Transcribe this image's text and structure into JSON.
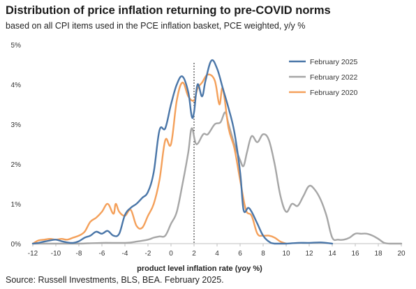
{
  "header": {
    "title": "Distribution of price inflation returning to pre-COVID norms",
    "subtitle": "based on all CPI items used in the PCE inflation basket, PCE weighted, y/y %"
  },
  "footer": {
    "source": "Source: Russell Investments, BLS, BEA. February 2025."
  },
  "chart_data": {
    "type": "line",
    "title": "Distribution of price inflation returning to pre-COVID norms",
    "subtitle": "based on all CPI items used in the PCE inflation basket, PCE weighted, y/y %",
    "xlabel": "product level inflation rate (yoy %)",
    "ylabel": "",
    "xlim": [
      -12,
      20
    ],
    "ylim": [
      0,
      5
    ],
    "x_ticks": [
      "-12",
      "-10",
      "-8",
      "-6",
      "-4",
      "-2",
      "0",
      "2",
      "4",
      "6",
      "8",
      "10",
      "12",
      "14",
      "16",
      "18",
      "20"
    ],
    "y_ticks": [
      "0%",
      "1%",
      "2%",
      "3%",
      "4%",
      "5%"
    ],
    "vline_x": 2,
    "grid": false,
    "legend_position": "top-right",
    "series": [
      {
        "name": "February 2025",
        "color": "#4a76a8",
        "points": [
          [
            -12,
            0.0
          ],
          [
            -11.5,
            0.02
          ],
          [
            -11,
            0.05
          ],
          [
            -10.5,
            0.08
          ],
          [
            -10,
            0.1
          ],
          [
            -9.5,
            0.06
          ],
          [
            -9,
            0.03
          ],
          [
            -8.5,
            0.02
          ],
          [
            -8,
            0.06
          ],
          [
            -7.5,
            0.15
          ],
          [
            -7,
            0.2
          ],
          [
            -6.5,
            0.3
          ],
          [
            -6,
            0.25
          ],
          [
            -5.5,
            0.32
          ],
          [
            -5,
            0.2
          ],
          [
            -4.5,
            0.25
          ],
          [
            -4,
            0.72
          ],
          [
            -3.5,
            0.9
          ],
          [
            -3,
            1.0
          ],
          [
            -2.5,
            1.15
          ],
          [
            -2,
            1.3
          ],
          [
            -1.5,
            1.8
          ],
          [
            -1,
            2.85
          ],
          [
            -0.5,
            2.9
          ],
          [
            0,
            3.5
          ],
          [
            0.5,
            4.0
          ],
          [
            1,
            4.2
          ],
          [
            1.5,
            3.8
          ],
          [
            1.8,
            3.2
          ],
          [
            2,
            3.3
          ],
          [
            2.3,
            4.0
          ],
          [
            2.7,
            3.7
          ],
          [
            3,
            4.1
          ],
          [
            3.5,
            4.6
          ],
          [
            4,
            4.4
          ],
          [
            4.5,
            3.9
          ],
          [
            5,
            3.4
          ],
          [
            5.5,
            2.8
          ],
          [
            6,
            1.8
          ],
          [
            6.3,
            0.85
          ],
          [
            6.7,
            0.9
          ],
          [
            7,
            0.8
          ],
          [
            7.5,
            0.5
          ],
          [
            8,
            0.2
          ],
          [
            8.5,
            0.05
          ],
          [
            9,
            0.0
          ],
          [
            10,
            0.0
          ],
          [
            11,
            0.02
          ],
          [
            12,
            0.02
          ],
          [
            13,
            0.03
          ],
          [
            14,
            0.0
          ]
        ]
      },
      {
        "name": "February 2022",
        "color": "#a6a6a6",
        "points": [
          [
            -12,
            0.0
          ],
          [
            -10,
            0.0
          ],
          [
            -8,
            0.0
          ],
          [
            -6,
            0.02
          ],
          [
            -4,
            0.02
          ],
          [
            -3,
            0.05
          ],
          [
            -2,
            0.1
          ],
          [
            -1.5,
            0.15
          ],
          [
            -1,
            0.18
          ],
          [
            -0.5,
            0.2
          ],
          [
            0,
            0.5
          ],
          [
            0.5,
            0.8
          ],
          [
            1,
            1.5
          ],
          [
            1.5,
            2.3
          ],
          [
            1.8,
            2.9
          ],
          [
            2.2,
            2.5
          ],
          [
            2.8,
            2.75
          ],
          [
            3.2,
            2.75
          ],
          [
            3.8,
            3.0
          ],
          [
            4.3,
            3.05
          ],
          [
            4.7,
            3.3
          ],
          [
            5,
            3.0
          ],
          [
            5.5,
            2.5
          ],
          [
            6,
            2.1
          ],
          [
            6.3,
            1.95
          ],
          [
            6.6,
            2.3
          ],
          [
            7,
            2.7
          ],
          [
            7.5,
            2.55
          ],
          [
            8,
            2.75
          ],
          [
            8.5,
            2.6
          ],
          [
            9,
            2.0
          ],
          [
            9.5,
            1.2
          ],
          [
            10,
            0.8
          ],
          [
            10.5,
            1.0
          ],
          [
            11,
            0.95
          ],
          [
            11.5,
            1.2
          ],
          [
            12,
            1.45
          ],
          [
            12.5,
            1.35
          ],
          [
            13,
            1.1
          ],
          [
            13.5,
            0.7
          ],
          [
            14,
            0.15
          ],
          [
            14.5,
            0.1
          ],
          [
            15,
            0.1
          ],
          [
            15.5,
            0.15
          ],
          [
            16,
            0.25
          ],
          [
            16.5,
            0.25
          ],
          [
            17,
            0.25
          ],
          [
            17.5,
            0.2
          ],
          [
            18,
            0.12
          ],
          [
            18.5,
            0.02
          ],
          [
            19,
            0.0
          ],
          [
            20,
            0.0
          ]
        ]
      },
      {
        "name": "February 2020",
        "color": "#f4a05a",
        "points": [
          [
            -12,
            0.0
          ],
          [
            -11.5,
            0.08
          ],
          [
            -11,
            0.1
          ],
          [
            -10.5,
            0.12
          ],
          [
            -10,
            0.1
          ],
          [
            -9.5,
            0.12
          ],
          [
            -9,
            0.1
          ],
          [
            -8.5,
            0.15
          ],
          [
            -8,
            0.2
          ],
          [
            -7.5,
            0.3
          ],
          [
            -7,
            0.55
          ],
          [
            -6.5,
            0.65
          ],
          [
            -6,
            0.8
          ],
          [
            -5.5,
            1.0
          ],
          [
            -5,
            0.75
          ],
          [
            -4.8,
            1.0
          ],
          [
            -4.5,
            0.8
          ],
          [
            -4,
            0.7
          ],
          [
            -3.5,
            0.85
          ],
          [
            -3,
            0.45
          ],
          [
            -2.5,
            0.4
          ],
          [
            -2,
            0.7
          ],
          [
            -1.5,
            1.0
          ],
          [
            -1,
            1.6
          ],
          [
            -0.5,
            2.6
          ],
          [
            0,
            2.5
          ],
          [
            0.5,
            3.6
          ],
          [
            1,
            4.05
          ],
          [
            1.5,
            3.7
          ],
          [
            2,
            3.6
          ],
          [
            2.3,
            3.9
          ],
          [
            2.7,
            4.05
          ],
          [
            3.2,
            4.25
          ],
          [
            3.8,
            4.1
          ],
          [
            4.2,
            3.5
          ],
          [
            4.5,
            3.9
          ],
          [
            5,
            2.9
          ],
          [
            5.5,
            2.4
          ],
          [
            6,
            1.6
          ],
          [
            6.5,
            0.85
          ],
          [
            7,
            0.7
          ],
          [
            7.5,
            0.25
          ],
          [
            8,
            0.2
          ],
          [
            8.5,
            0.2
          ],
          [
            9,
            0.15
          ],
          [
            9.5,
            0.05
          ],
          [
            10,
            0.0
          ]
        ]
      }
    ]
  }
}
